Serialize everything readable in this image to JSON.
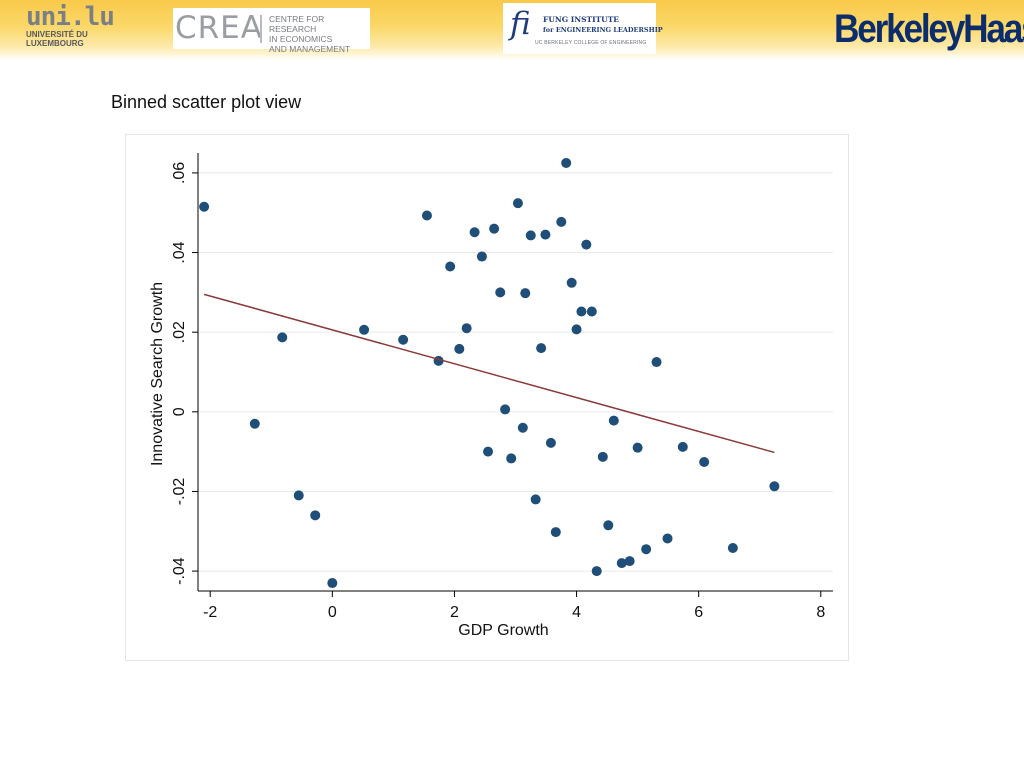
{
  "header": {
    "logo_uni": {
      "mark": "uni.lu",
      "line1": "UNIVERSITÉ DU",
      "line2": "LUXEMBOURG"
    },
    "logo_crea": {
      "word": "CREA",
      "line1": "CENTRE FOR RESEARCH",
      "line2": "IN ECONOMICS",
      "line3": "AND MANAGEMENT"
    },
    "logo_fung": {
      "mark": "fi",
      "line1": "FUNG INSTITUTE",
      "line2": "for ENGINEERING LEADERSHIP",
      "line3": "UC BERKELEY COLLEGE OF ENGINEERING"
    },
    "logo_haas": {
      "part1": "Berkeley",
      "part2": "Haas"
    }
  },
  "slide": {
    "title": "Binned scatter plot view"
  },
  "colors": {
    "marker": "#1f4e79",
    "fit_line": "#8b3a3a",
    "grid": "#e6eaec",
    "header_gold": "#f9c94a"
  },
  "chart_data": {
    "type": "scatter",
    "title": "",
    "xlabel": "GDP Growth",
    "ylabel": "Innovative Search Growth",
    "xlim": [
      -2.2,
      8.2
    ],
    "ylim": [
      -0.045,
      0.065
    ],
    "xticks": [
      -2,
      0,
      2,
      4,
      6,
      8
    ],
    "xtick_labels": [
      "-2",
      "0",
      "2",
      "4",
      "6",
      "8"
    ],
    "yticks": [
      -0.04,
      -0.02,
      0,
      0.02,
      0.04,
      0.06
    ],
    "ytick_labels": [
      "-.04",
      "-.02",
      "0",
      ".02",
      ".04",
      ".06"
    ],
    "grid": true,
    "points": [
      [
        -2.1,
        0.0515
      ],
      [
        -1.27,
        -0.003
      ],
      [
        -0.82,
        0.0187
      ],
      [
        -0.55,
        -0.021
      ],
      [
        -0.28,
        -0.026
      ],
      [
        0.0,
        -0.043
      ],
      [
        0.52,
        0.0206
      ],
      [
        1.16,
        0.0181
      ],
      [
        1.55,
        0.0493
      ],
      [
        1.74,
        0.0128
      ],
      [
        1.93,
        0.0365
      ],
      [
        2.08,
        0.0158
      ],
      [
        2.2,
        0.021
      ],
      [
        2.33,
        0.0451
      ],
      [
        2.45,
        0.039
      ],
      [
        2.55,
        -0.01
      ],
      [
        2.65,
        0.046
      ],
      [
        2.75,
        0.03
      ],
      [
        2.83,
        0.0006
      ],
      [
        2.93,
        -0.0117
      ],
      [
        3.04,
        0.0524
      ],
      [
        3.12,
        -0.004
      ],
      [
        3.16,
        0.0298
      ],
      [
        3.25,
        0.0443
      ],
      [
        3.33,
        -0.022
      ],
      [
        3.42,
        0.016
      ],
      [
        3.49,
        0.0445
      ],
      [
        3.58,
        -0.0078
      ],
      [
        3.66,
        -0.0302
      ],
      [
        3.75,
        0.0477
      ],
      [
        3.83,
        0.0625
      ],
      [
        3.92,
        0.0324
      ],
      [
        4.0,
        0.0207
      ],
      [
        4.08,
        0.0252
      ],
      [
        4.16,
        0.042
      ],
      [
        4.25,
        0.0252
      ],
      [
        4.33,
        -0.04
      ],
      [
        4.43,
        -0.0113
      ],
      [
        4.52,
        -0.0285
      ],
      [
        4.61,
        -0.0022
      ],
      [
        4.74,
        -0.038
      ],
      [
        4.87,
        -0.0375
      ],
      [
        5.0,
        -0.009
      ],
      [
        5.14,
        -0.0345
      ],
      [
        5.31,
        0.0125
      ],
      [
        5.49,
        -0.0318
      ],
      [
        5.74,
        -0.0088
      ],
      [
        6.09,
        -0.0126
      ],
      [
        6.56,
        -0.0342
      ],
      [
        7.24,
        -0.0187
      ]
    ],
    "fit_line": {
      "x": [
        -2.1,
        7.24
      ],
      "y": [
        0.0295,
        -0.0102
      ]
    }
  }
}
